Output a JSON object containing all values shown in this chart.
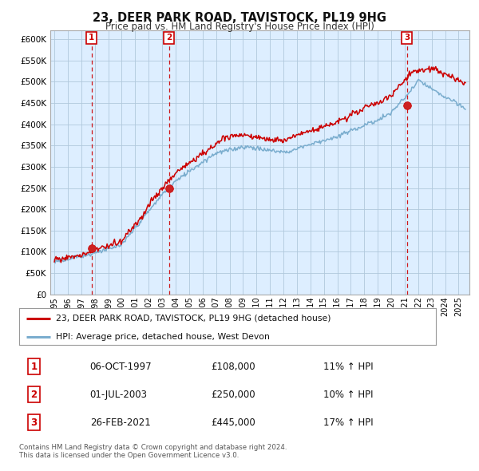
{
  "title": "23, DEER PARK ROAD, TAVISTOCK, PL19 9HG",
  "subtitle": "Price paid vs. HM Land Registry's House Price Index (HPI)",
  "legend_line1": "23, DEER PARK ROAD, TAVISTOCK, PL19 9HG (detached house)",
  "legend_line2": "HPI: Average price, detached house, West Devon",
  "sale_points": [
    {
      "date_num": 1997.76,
      "price": 108000,
      "label": "1"
    },
    {
      "date_num": 2003.5,
      "price": 250000,
      "label": "2"
    },
    {
      "date_num": 2021.15,
      "price": 445000,
      "label": "3"
    }
  ],
  "table_rows": [
    [
      "1",
      "06-OCT-1997",
      "£108,000",
      "11% ↑ HPI"
    ],
    [
      "2",
      "01-JUL-2003",
      "£250,000",
      "10% ↑ HPI"
    ],
    [
      "3",
      "26-FEB-2021",
      "£445,000",
      "17% ↑ HPI"
    ]
  ],
  "footer": "Contains HM Land Registry data © Crown copyright and database right 2024.\nThis data is licensed under the Open Government Licence v3.0.",
  "red_color": "#cc0000",
  "blue_color": "#7aadce",
  "chart_bg": "#ddeeff",
  "dashed_red": "#cc0000",
  "ylim": [
    0,
    620000
  ],
  "yticks": [
    0,
    50000,
    100000,
    150000,
    200000,
    250000,
    300000,
    350000,
    400000,
    450000,
    500000,
    550000,
    600000
  ],
  "xlim_start": 1994.7,
  "xlim_end": 2025.8,
  "background_color": "#ffffff",
  "grid_color": "#b0c8dc"
}
